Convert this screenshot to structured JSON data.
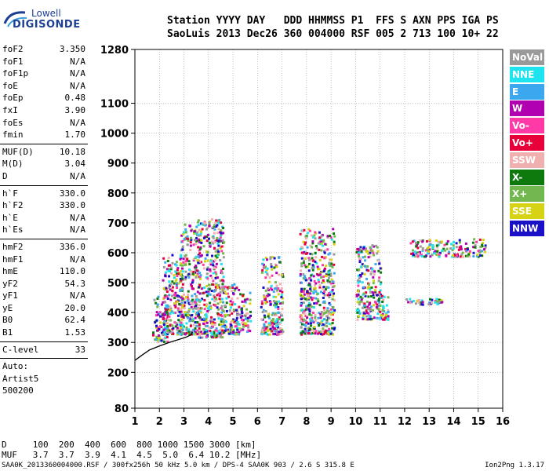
{
  "logo": {
    "brand": "Lowell",
    "name": "DIGISONDE"
  },
  "header": {
    "line1": "Station YYYY DAY   DDD HHMMSS P1  FFS S AXN PPS IGA PS",
    "line2": "SaoLuis 2013 Dec26 360 004000 RSF 005 2 713 100 10+ 22"
  },
  "scaled": {
    "group1": [
      {
        "label": "foF2",
        "value": "3.350"
      },
      {
        "label": "foF1",
        "value": "N/A"
      },
      {
        "label": "foF1p",
        "value": "N/A"
      },
      {
        "label": "foE",
        "value": "N/A"
      },
      {
        "label": "foEp",
        "value": "0.48"
      },
      {
        "label": "fxI",
        "value": "3.90"
      },
      {
        "label": "foEs",
        "value": "N/A"
      },
      {
        "label": "fmin",
        "value": "1.70"
      }
    ],
    "group2": [
      {
        "label": "MUF(D)",
        "value": "10.18"
      },
      {
        "label": "M(D)",
        "value": "3.04"
      },
      {
        "label": "D",
        "value": "N/A"
      }
    ],
    "group3": [
      {
        "label": "h`F",
        "value": "330.0"
      },
      {
        "label": "h`F2",
        "value": "330.0"
      },
      {
        "label": "h`E",
        "value": "N/A"
      },
      {
        "label": "h`Es",
        "value": "N/A"
      }
    ],
    "group4": [
      {
        "label": "hmF2",
        "value": "336.0"
      },
      {
        "label": "hmF1",
        "value": "N/A"
      },
      {
        "label": "hmE",
        "value": "110.0"
      },
      {
        "label": "yF2",
        "value": "54.3"
      },
      {
        "label": "yF1",
        "value": "N/A"
      },
      {
        "label": "yE",
        "value": "20.0"
      },
      {
        "label": "B0",
        "value": "62.4"
      },
      {
        "label": "B1",
        "value": "1.53"
      }
    ],
    "clevel": {
      "label": "C-level",
      "value": "33"
    },
    "auto": [
      "Auto:",
      "Artist5",
      "500200"
    ]
  },
  "legend": [
    {
      "label": "NoVal",
      "color": "#9a9a9a"
    },
    {
      "label": "NNE",
      "color": "#1ee4f0"
    },
    {
      "label": "E",
      "color": "#3ba7ee"
    },
    {
      "label": "W",
      "color": "#b000b0"
    },
    {
      "label": "Vo-",
      "color": "#ff3aa8"
    },
    {
      "label": "Vo+",
      "color": "#e8003a"
    },
    {
      "label": "SSW",
      "color": "#f0b0b0"
    },
    {
      "label": "X-",
      "color": "#0e7a0e"
    },
    {
      "label": "X+",
      "color": "#72b84e"
    },
    {
      "label": "SSE",
      "color": "#d6d214"
    },
    {
      "label": "NNW",
      "color": "#1a10c8"
    }
  ],
  "muf_table": {
    "row1": "D     100  200  400  600  800 1000 1500 3000 [km]",
    "row2": "MUF   3.7  3.7  3.9  4.1  4.5  5.0  6.4 10.2 [MHz]"
  },
  "footer": {
    "left": "SAA0K_2013360004000.RSF / 300fx256h 50 kHz 5.0 km / DPS-4 SAA0K 903 / 2.6 S 315.8 E",
    "right": "Ion2Png 1.3.17"
  },
  "chart_data": {
    "type": "scatter",
    "xlim": [
      1,
      16
    ],
    "ylim": [
      80,
      1280
    ],
    "x_ticks": [
      1,
      2,
      3,
      4,
      5,
      6,
      7,
      8,
      9,
      10,
      11,
      12,
      13,
      14,
      15,
      16
    ],
    "y_ticks": [
      80,
      200,
      300,
      400,
      500,
      600,
      700,
      800,
      900,
      1000,
      1100,
      1280
    ],
    "grid": true,
    "trace_clusters": [
      {
        "f_range": [
          1.7,
          2.3
        ],
        "h_range": [
          305,
          460
        ]
      },
      {
        "f_range": [
          2.1,
          2.9
        ],
        "h_range": [
          330,
          600
        ]
      },
      {
        "f_range": [
          2.8,
          3.6
        ],
        "h_range": [
          330,
          700
        ]
      },
      {
        "f_range": [
          3.5,
          4.6
        ],
        "h_range": [
          320,
          720
        ]
      },
      {
        "f_range": [
          4.5,
          5.3
        ],
        "h_range": [
          330,
          500
        ]
      },
      {
        "f_range": [
          5.3,
          5.7
        ],
        "h_range": [
          340,
          470
        ]
      },
      {
        "f_range": [
          6.1,
          7.0
        ],
        "h_range": [
          330,
          590
        ]
      },
      {
        "f_range": [
          7.7,
          9.1
        ],
        "h_range": [
          330,
          690
        ]
      },
      {
        "f_range": [
          10.0,
          11.0
        ],
        "h_range": [
          380,
          630
        ]
      },
      {
        "f_range": [
          11.0,
          11.3
        ],
        "h_range": [
          380,
          460
        ]
      },
      {
        "f_range": [
          12.0,
          13.5
        ],
        "h_range": [
          430,
          450
        ]
      },
      {
        "f_range": [
          12.2,
          15.3
        ],
        "h_range": [
          590,
          650
        ]
      }
    ],
    "profile": {
      "f": [
        1.0,
        1.3,
        1.6,
        2.0,
        2.4,
        2.8,
        3.1,
        3.3,
        3.35
      ],
      "h": [
        240,
        258,
        275,
        288,
        300,
        310,
        318,
        326,
        336
      ]
    }
  }
}
